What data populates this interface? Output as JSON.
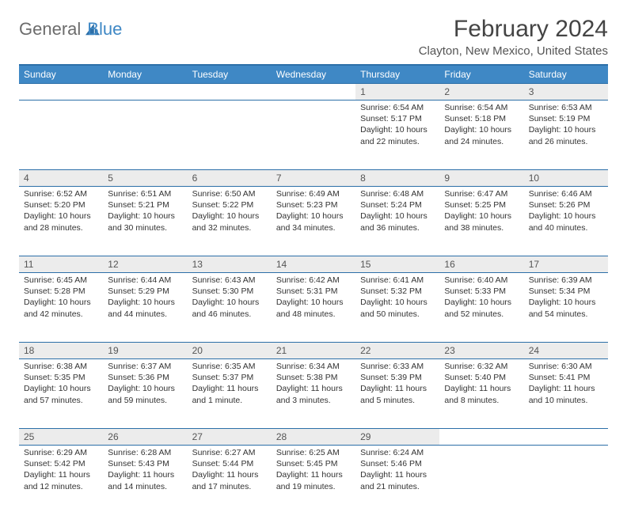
{
  "brand": {
    "part1": "General",
    "part2": "Blue"
  },
  "title": "February 2024",
  "location": "Clayton, New Mexico, United States",
  "colors": {
    "header_bg": "#3f88c5",
    "border": "#2c6fa8",
    "daynum_bg": "#ececec",
    "text": "#333333",
    "title_color": "#444444"
  },
  "weekdays": [
    "Sunday",
    "Monday",
    "Tuesday",
    "Wednesday",
    "Thursday",
    "Friday",
    "Saturday"
  ],
  "weeks": [
    [
      null,
      null,
      null,
      null,
      {
        "d": "1",
        "sr": "Sunrise: 6:54 AM",
        "ss": "Sunset: 5:17 PM",
        "dl1": "Daylight: 10 hours",
        "dl2": "and 22 minutes."
      },
      {
        "d": "2",
        "sr": "Sunrise: 6:54 AM",
        "ss": "Sunset: 5:18 PM",
        "dl1": "Daylight: 10 hours",
        "dl2": "and 24 minutes."
      },
      {
        "d": "3",
        "sr": "Sunrise: 6:53 AM",
        "ss": "Sunset: 5:19 PM",
        "dl1": "Daylight: 10 hours",
        "dl2": "and 26 minutes."
      }
    ],
    [
      {
        "d": "4",
        "sr": "Sunrise: 6:52 AM",
        "ss": "Sunset: 5:20 PM",
        "dl1": "Daylight: 10 hours",
        "dl2": "and 28 minutes."
      },
      {
        "d": "5",
        "sr": "Sunrise: 6:51 AM",
        "ss": "Sunset: 5:21 PM",
        "dl1": "Daylight: 10 hours",
        "dl2": "and 30 minutes."
      },
      {
        "d": "6",
        "sr": "Sunrise: 6:50 AM",
        "ss": "Sunset: 5:22 PM",
        "dl1": "Daylight: 10 hours",
        "dl2": "and 32 minutes."
      },
      {
        "d": "7",
        "sr": "Sunrise: 6:49 AM",
        "ss": "Sunset: 5:23 PM",
        "dl1": "Daylight: 10 hours",
        "dl2": "and 34 minutes."
      },
      {
        "d": "8",
        "sr": "Sunrise: 6:48 AM",
        "ss": "Sunset: 5:24 PM",
        "dl1": "Daylight: 10 hours",
        "dl2": "and 36 minutes."
      },
      {
        "d": "9",
        "sr": "Sunrise: 6:47 AM",
        "ss": "Sunset: 5:25 PM",
        "dl1": "Daylight: 10 hours",
        "dl2": "and 38 minutes."
      },
      {
        "d": "10",
        "sr": "Sunrise: 6:46 AM",
        "ss": "Sunset: 5:26 PM",
        "dl1": "Daylight: 10 hours",
        "dl2": "and 40 minutes."
      }
    ],
    [
      {
        "d": "11",
        "sr": "Sunrise: 6:45 AM",
        "ss": "Sunset: 5:28 PM",
        "dl1": "Daylight: 10 hours",
        "dl2": "and 42 minutes."
      },
      {
        "d": "12",
        "sr": "Sunrise: 6:44 AM",
        "ss": "Sunset: 5:29 PM",
        "dl1": "Daylight: 10 hours",
        "dl2": "and 44 minutes."
      },
      {
        "d": "13",
        "sr": "Sunrise: 6:43 AM",
        "ss": "Sunset: 5:30 PM",
        "dl1": "Daylight: 10 hours",
        "dl2": "and 46 minutes."
      },
      {
        "d": "14",
        "sr": "Sunrise: 6:42 AM",
        "ss": "Sunset: 5:31 PM",
        "dl1": "Daylight: 10 hours",
        "dl2": "and 48 minutes."
      },
      {
        "d": "15",
        "sr": "Sunrise: 6:41 AM",
        "ss": "Sunset: 5:32 PM",
        "dl1": "Daylight: 10 hours",
        "dl2": "and 50 minutes."
      },
      {
        "d": "16",
        "sr": "Sunrise: 6:40 AM",
        "ss": "Sunset: 5:33 PM",
        "dl1": "Daylight: 10 hours",
        "dl2": "and 52 minutes."
      },
      {
        "d": "17",
        "sr": "Sunrise: 6:39 AM",
        "ss": "Sunset: 5:34 PM",
        "dl1": "Daylight: 10 hours",
        "dl2": "and 54 minutes."
      }
    ],
    [
      {
        "d": "18",
        "sr": "Sunrise: 6:38 AM",
        "ss": "Sunset: 5:35 PM",
        "dl1": "Daylight: 10 hours",
        "dl2": "and 57 minutes."
      },
      {
        "d": "19",
        "sr": "Sunrise: 6:37 AM",
        "ss": "Sunset: 5:36 PM",
        "dl1": "Daylight: 10 hours",
        "dl2": "and 59 minutes."
      },
      {
        "d": "20",
        "sr": "Sunrise: 6:35 AM",
        "ss": "Sunset: 5:37 PM",
        "dl1": "Daylight: 11 hours",
        "dl2": "and 1 minute."
      },
      {
        "d": "21",
        "sr": "Sunrise: 6:34 AM",
        "ss": "Sunset: 5:38 PM",
        "dl1": "Daylight: 11 hours",
        "dl2": "and 3 minutes."
      },
      {
        "d": "22",
        "sr": "Sunrise: 6:33 AM",
        "ss": "Sunset: 5:39 PM",
        "dl1": "Daylight: 11 hours",
        "dl2": "and 5 minutes."
      },
      {
        "d": "23",
        "sr": "Sunrise: 6:32 AM",
        "ss": "Sunset: 5:40 PM",
        "dl1": "Daylight: 11 hours",
        "dl2": "and 8 minutes."
      },
      {
        "d": "24",
        "sr": "Sunrise: 6:30 AM",
        "ss": "Sunset: 5:41 PM",
        "dl1": "Daylight: 11 hours",
        "dl2": "and 10 minutes."
      }
    ],
    [
      {
        "d": "25",
        "sr": "Sunrise: 6:29 AM",
        "ss": "Sunset: 5:42 PM",
        "dl1": "Daylight: 11 hours",
        "dl2": "and 12 minutes."
      },
      {
        "d": "26",
        "sr": "Sunrise: 6:28 AM",
        "ss": "Sunset: 5:43 PM",
        "dl1": "Daylight: 11 hours",
        "dl2": "and 14 minutes."
      },
      {
        "d": "27",
        "sr": "Sunrise: 6:27 AM",
        "ss": "Sunset: 5:44 PM",
        "dl1": "Daylight: 11 hours",
        "dl2": "and 17 minutes."
      },
      {
        "d": "28",
        "sr": "Sunrise: 6:25 AM",
        "ss": "Sunset: 5:45 PM",
        "dl1": "Daylight: 11 hours",
        "dl2": "and 19 minutes."
      },
      {
        "d": "29",
        "sr": "Sunrise: 6:24 AM",
        "ss": "Sunset: 5:46 PM",
        "dl1": "Daylight: 11 hours",
        "dl2": "and 21 minutes."
      },
      null,
      null
    ]
  ]
}
